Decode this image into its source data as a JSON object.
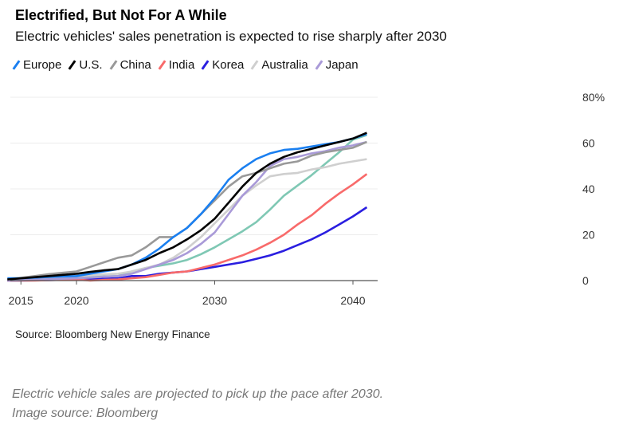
{
  "chart_data": {
    "type": "line",
    "title": "Electrified, But Not For A While",
    "subtitle": "Electric vehicles' sales penetration is expected to rise sharply after 2030",
    "xlabel": "",
    "ylabel": "",
    "x": [
      2015,
      2016,
      2017,
      2018,
      2019,
      2020,
      2021,
      2022,
      2023,
      2024,
      2025,
      2026,
      2027,
      2028,
      2029,
      2030,
      2031,
      2032,
      2033,
      2034,
      2035,
      2036,
      2037,
      2038,
      2039,
      2040,
      2041
    ],
    "xticks": [
      "2015",
      "2020",
      "2030",
      "2040"
    ],
    "yticks": [
      "0",
      "20",
      "40",
      "60",
      "80%"
    ],
    "ylim": [
      0,
      80
    ],
    "grid": true,
    "legend": "top",
    "series": [
      {
        "name": "",
        "color": "#7fc8b4",
        "values": [
          0,
          0.3,
          0.6,
          0.9,
          1.2,
          1.5,
          1.7,
          1.8,
          2,
          4,
          5.5,
          6.5,
          7.5,
          9,
          11.5,
          14.5,
          18,
          21.5,
          25.5,
          31,
          37,
          41.5,
          46,
          51,
          56,
          61.5,
          63.5
        ]
      },
      {
        "name": "Korea",
        "color": "#2a1ee0",
        "values": [
          0,
          0,
          0.1,
          0.2,
          0.4,
          0.5,
          0.6,
          0.8,
          1,
          2,
          2,
          3,
          3.5,
          4,
          5,
          6,
          7,
          8,
          9.5,
          11,
          13,
          15.5,
          18,
          21,
          24.5,
          28,
          32
        ]
      },
      {
        "name": "India",
        "color": "#f86a6a",
        "values": [
          0,
          0,
          0,
          0.2,
          0.4,
          0.5,
          0,
          0.3,
          0.5,
          1,
          1.5,
          2.5,
          3.5,
          4,
          5.5,
          7,
          9,
          11,
          13.5,
          16.5,
          20,
          24.5,
          28.5,
          33.5,
          38,
          42,
          46.5
        ]
      },
      {
        "name": "Australia",
        "color": "#cfcfcf",
        "values": [
          0.5,
          0.8,
          1.1,
          1.4,
          1.7,
          2,
          2.3,
          2.7,
          3,
          4,
          5.5,
          7,
          10,
          14,
          19,
          25,
          31,
          37,
          41.5,
          45.5,
          46.5,
          47,
          48.5,
          49.5,
          51,
          52,
          53
        ]
      },
      {
        "name": "Japan",
        "color": "#a99ad8",
        "values": [
          0,
          0.2,
          0.4,
          0.6,
          0.8,
          1,
          1.3,
          1.7,
          2,
          3,
          5,
          7,
          9,
          12,
          16,
          21,
          29,
          37,
          43,
          50,
          53,
          54,
          55.5,
          56.5,
          58,
          59,
          60.5
        ]
      },
      {
        "name": "China",
        "color": "#999999",
        "values": [
          0.5,
          1.2,
          2,
          2.8,
          3.4,
          4,
          6,
          8,
          10,
          11,
          14.5,
          19,
          19,
          23,
          29,
          35,
          41,
          45.5,
          47,
          49,
          51,
          52,
          54.5,
          56,
          57,
          58,
          60.5
        ]
      },
      {
        "name": "Europe",
        "color": "#1a7ff0",
        "values": [
          1,
          1,
          1.3,
          1.6,
          1.8,
          2,
          3,
          4,
          5,
          7,
          10,
          14,
          19,
          23,
          29,
          36,
          44,
          49,
          53,
          55.5,
          57,
          57.5,
          58.5,
          59.5,
          60.5,
          62,
          64
        ]
      },
      {
        "name": "U.S.",
        "color": "#000000",
        "values": [
          0.5,
          1,
          1.5,
          2,
          2.5,
          3,
          3.8,
          4.5,
          5,
          7,
          9,
          12,
          14.5,
          18,
          22,
          27,
          34,
          41,
          47,
          51,
          54,
          56,
          57.5,
          59,
          60.5,
          62,
          64.5
        ]
      }
    ],
    "legend_order": [
      "Europe",
      "U.S.",
      "China",
      "India",
      "Korea",
      "Australia",
      "Japan"
    ]
  },
  "source": "Source: Bloomberg New Energy Finance",
  "caption": [
    "Electric vehicle sales are projected to pick up the pace after 2030.",
    "Image source: Bloomberg"
  ]
}
